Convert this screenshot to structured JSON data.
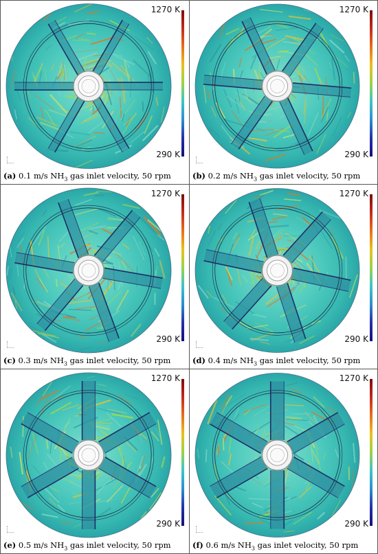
{
  "colorbar": {
    "max_label": "1270 K",
    "min_label": "290 K",
    "colors": [
      "#7b0d0d",
      "#c42a1a",
      "#e8701a",
      "#e9c21a",
      "#9ad24a",
      "#3cc6c4",
      "#2a8ed0",
      "#2530a8",
      "#15107a"
    ]
  },
  "panels": [
    {
      "id": "a",
      "tag": "(a)",
      "formula_before": "0.1 m/s NH",
      "subscript": "3",
      "formula_after": " gas inlet velocity, 50 rpm",
      "angle": 0,
      "shade": 0.15
    },
    {
      "id": "b",
      "tag": "(b)",
      "formula_before": "0.2 m/s NH",
      "subscript": "3",
      "formula_after": " gas inlet velocity, 50 rpm",
      "angle": 5,
      "shade": 0.3
    },
    {
      "id": "c",
      "tag": "(c)",
      "formula_before": "0.3 m/s NH",
      "subscript": "3",
      "formula_after": " gas inlet velocity, 50 rpm",
      "angle": 10,
      "shade": 0.45
    },
    {
      "id": "d",
      "tag": "(d)",
      "formula_before": "0.4 m/s NH",
      "subscript": "3",
      "formula_after": " gas inlet velocity, 50 rpm",
      "angle": 12,
      "shade": 0.55
    },
    {
      "id": "e",
      "tag": "(e)",
      "formula_before": "0.5 m/s NH",
      "subscript": "3",
      "formula_after": " gas inlet velocity, 50 rpm",
      "angle": 30,
      "shade": 0.7
    },
    {
      "id": "f",
      "tag": "(f)",
      "formula_before": "0.6 m/s NH",
      "subscript": "3",
      "formula_after": " gas inlet velocity, 50 rpm",
      "angle": 30,
      "shade": 0.75
    }
  ]
}
